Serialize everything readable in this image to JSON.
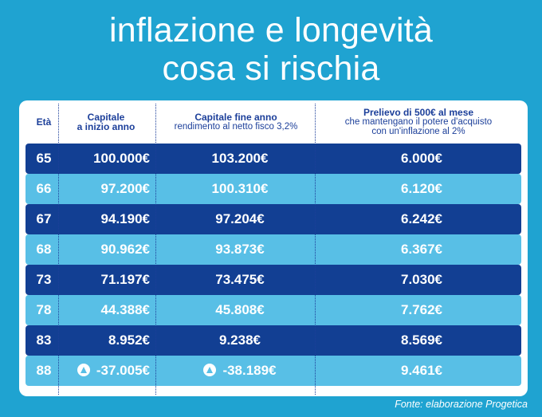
{
  "title": {
    "line1": "inflazione e longevità",
    "line2": "cosa si rischia"
  },
  "table": {
    "headers": {
      "age": "Età",
      "capital_start_line1": "Capitale",
      "capital_start_line2": "a inizio anno",
      "capital_end_line1": "Capitale fine anno",
      "capital_end_line2": "rendimento al netto fisco 3,2%",
      "withdrawal_line1": "Prelievo di 500€ al mese",
      "withdrawal_line2": "che mantengano il potere d'acquisto",
      "withdrawal_line3": "con un'inflazione al 2%"
    },
    "rows": [
      {
        "age": "65",
        "start": "100.000€",
        "end": "103.200€",
        "withdrawal": "6.000€"
      },
      {
        "age": "66",
        "start": "97.200€",
        "end": "100.310€",
        "withdrawal": "6.120€"
      },
      {
        "age": "67",
        "start": "94.190€",
        "end": "97.204€",
        "withdrawal": "6.242€"
      },
      {
        "age": "68",
        "start": "90.962€",
        "end": "93.873€",
        "withdrawal": "6.367€"
      },
      {
        "age": "73",
        "start": "71.197€",
        "end": "73.475€",
        "withdrawal": "7.030€"
      },
      {
        "age": "78",
        "start": "44.388€",
        "end": "45.808€",
        "withdrawal": "7.762€"
      },
      {
        "age": "83",
        "start": "8.952€",
        "end": "9.238€",
        "withdrawal": "8.569€"
      },
      {
        "age": "88",
        "start": "-37.005€",
        "end": "-38.189€",
        "withdrawal": "9.461€"
      }
    ]
  },
  "icons": {
    "negative_warning": "warning-icon"
  },
  "colors": {
    "background": "#1fa3d1",
    "row_dark": "#123f93",
    "row_light": "#58bfe6",
    "header_text": "#1c3f9a"
  },
  "source": "Fonte: elaborazione Progetica"
}
